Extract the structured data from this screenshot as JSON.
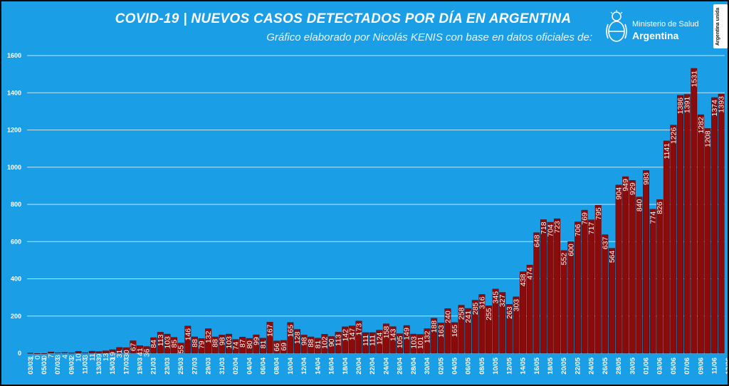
{
  "header": {
    "title": "COVID-19  |  NUEVOS CASOS DETECTADOS POR DÍA EN ARGENTINA",
    "subtitle": "Gráfico elaborado por Nicolás KENIS con base en datos oficiales de:",
    "ministry_line1": "Ministerio de Salud",
    "ministry_line2": "Argentina",
    "badge": "Argentina unida",
    "logo_icon": "coat-of-arms-icon"
  },
  "colors": {
    "background": "#1a9ee6",
    "bar": "#8b0a0a",
    "bar_edge": "#5a0000",
    "highlight": "#ff1a1a",
    "grid": "#bfe6fb"
  },
  "chart_data": {
    "type": "bar",
    "ylim": [
      0,
      1600
    ],
    "yticks": [
      0,
      200,
      400,
      600,
      800,
      1000,
      1200,
      1400,
      1600
    ],
    "grid": true,
    "highlight_index": 102,
    "x_tick_labels": [
      "03/03",
      "05/03",
      "07/03",
      "09/03",
      "11/03",
      "13/03",
      "15/03",
      "17/03",
      "19/03",
      "21/03",
      "23/03",
      "25/03",
      "27/03",
      "29/03",
      "31/03",
      "02/04",
      "04/04",
      "06/04",
      "08/04",
      "10/04",
      "12/04",
      "14/04",
      "16/04",
      "18/04",
      "20/04",
      "22/04",
      "24/04",
      "26/04",
      "28/04",
      "30/04",
      "02/05",
      "04/05",
      "06/05",
      "08/05",
      "10/05",
      "12/05",
      "14/05",
      "16/05",
      "18/05",
      "20/05",
      "22/05",
      "24/05",
      "26/05",
      "28/05",
      "30/05",
      "01/06",
      "03/06",
      "05/06",
      "07/06",
      "09/06",
      "11/06",
      "13/06",
      "15/06",
      "17/06"
    ],
    "values": [
      1,
      0,
      0,
      7,
      3,
      4,
      2,
      10,
      3,
      11,
      9,
      13,
      19,
      31,
      30,
      67,
      41,
      36,
      84,
      113,
      103,
      85,
      55,
      146,
      88,
      79,
      132,
      88,
      98,
      103,
      74,
      87,
      80,
      99,
      81,
      167,
      66,
      69,
      165,
      128,
      98,
      88,
      81,
      102,
      90,
      113,
      142,
      147,
      173,
      111,
      111,
      124,
      158,
      143,
      105,
      149,
      103,
      101,
      132,
      188,
      163,
      240,
      165,
      258,
      241,
      285,
      316,
      255,
      345,
      327,
      263,
      303,
      438,
      474,
      648,
      718,
      704,
      723,
      552,
      600,
      706,
      769,
      717,
      795,
      637,
      564,
      904,
      949,
      929,
      840,
      983,
      774,
      826,
      1141,
      1226,
      1386,
      1391,
      1531,
      1282,
      1208,
      1374,
      1393
    ],
    "labels": [
      "1",
      "0",
      "0",
      "7",
      "3",
      "4",
      "2",
      "10",
      "3",
      "11",
      "9",
      "13",
      "19",
      "31",
      "30",
      "67",
      "41",
      "36",
      "84",
      "113",
      "103",
      "85",
      "55",
      "146",
      "88",
      "79",
      "132",
      "88",
      "98",
      "103",
      "74",
      "87",
      "80",
      "99",
      "81",
      "167",
      "66",
      "69",
      "165",
      "128",
      "98",
      "88",
      "81",
      "102",
      "90",
      "113",
      "142",
      "147",
      "173",
      "111",
      "111",
      "124",
      "158",
      "143",
      "105",
      "149",
      "103",
      "101",
      "132",
      "188",
      "163",
      "240",
      "165",
      "258",
      "241",
      "285",
      "316",
      "255",
      "345",
      "327",
      "263",
      "303",
      "438",
      "474",
      "648",
      "718",
      "704",
      "723",
      "552",
      "600",
      "706",
      "769",
      "717",
      "795",
      "637",
      "564",
      "904",
      "949",
      "929",
      "840",
      "983",
      "774",
      "826",
      "1141",
      "1226",
      "1386",
      "1391",
      "1531",
      "1282",
      "1208",
      "1374",
      "1393"
    ]
  }
}
